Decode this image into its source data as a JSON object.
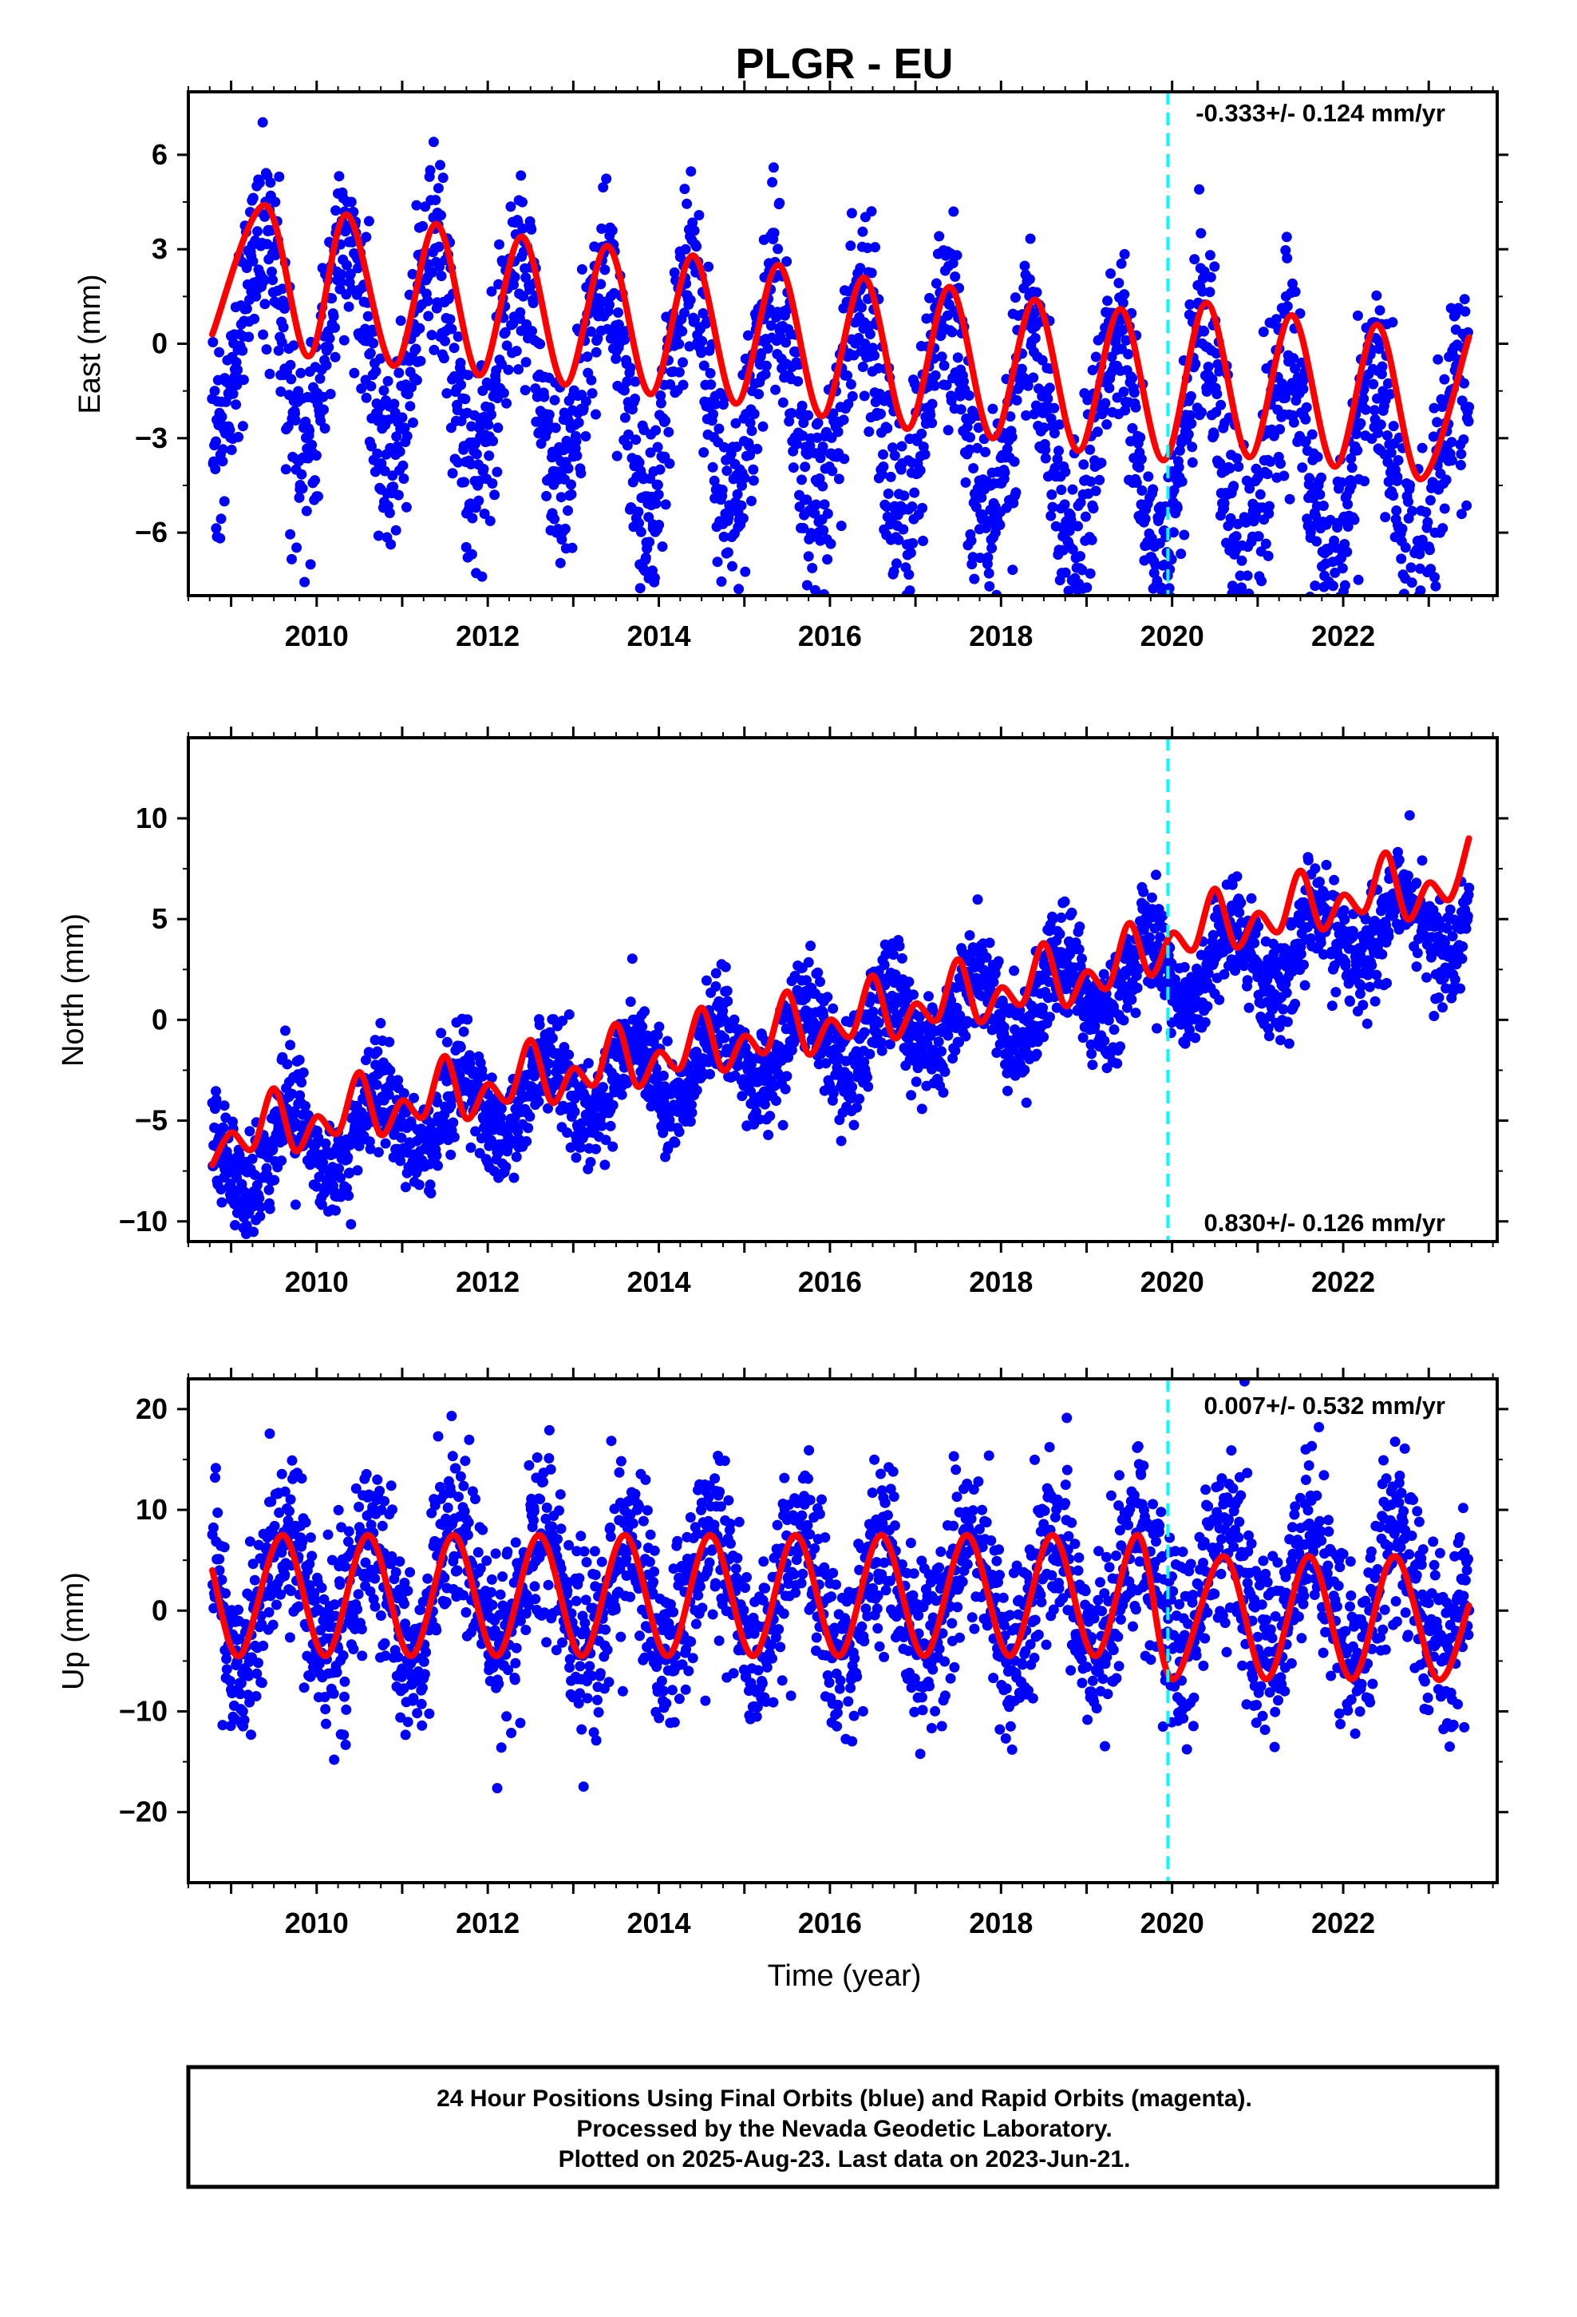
{
  "title": "PLGR - EU",
  "colors": {
    "final_orbit_points": "#0000ff",
    "model_curve": "#ff0000",
    "break_line": "#00ffff",
    "axes": "#000000"
  },
  "xlabel": "Time (year)",
  "footer": {
    "line1": "24 Hour Positions Using Final Orbits (blue) and Rapid Orbits (magenta).",
    "line2": "Processed by the Nevada Geodetic Laboratory.",
    "line3": "Plotted on 2025-Aug-23. Last data on 2023-Jun-21."
  },
  "chart_data": [
    {
      "type": "scatter",
      "component": "east",
      "ylabel": "East (mm)",
      "rate_text": "-0.333+/- 0.124 mm/yr",
      "rate_position": "top-right",
      "xlim": [
        2008.5,
        2023.8
      ],
      "ylim": [
        -8,
        8
      ],
      "x_ticks": [
        2010,
        2012,
        2014,
        2016,
        2018,
        2020,
        2022
      ],
      "y_ticks": [
        -6,
        -3,
        0,
        3,
        6
      ],
      "y_tick_labels": [
        "−6",
        "−3",
        "0",
        "3",
        "6"
      ],
      "break_year": 2019.95,
      "grid": false,
      "series": [
        {
          "kind": "points",
          "color": "#0000ff",
          "x_start": 2008.78,
          "x_end": 2023.47,
          "model": {
            "offset": 0.3,
            "trend": -0.333,
            "annual_amp": 3.5,
            "phase": 0.1,
            "scatter_sd": 1.6
          }
        },
        {
          "kind": "fit",
          "color": "#ff0000",
          "x": [
            2008.78,
            2009.4,
            2009.9,
            2010.35,
            2010.9,
            2011.4,
            2011.9,
            2012.4,
            2012.9,
            2013.4,
            2013.9,
            2014.4,
            2014.9,
            2015.4,
            2015.9,
            2016.4,
            2016.9,
            2017.4,
            2017.9,
            2018.4,
            2018.9,
            2019.4,
            2019.9,
            2020.4,
            2020.9,
            2021.4,
            2021.9,
            2022.4,
            2022.9,
            2023.47
          ],
          "y": [
            0.3,
            4.4,
            -0.4,
            4.1,
            -0.7,
            3.8,
            -1.0,
            3.4,
            -1.3,
            3.1,
            -1.6,
            2.8,
            -1.9,
            2.5,
            -2.3,
            2.1,
            -2.7,
            1.8,
            -3.0,
            1.4,
            -3.4,
            1.1,
            -3.7,
            1.3,
            -3.6,
            0.9,
            -3.9,
            0.6,
            -4.3,
            0.2
          ]
        }
      ]
    },
    {
      "type": "scatter",
      "component": "north",
      "ylabel": "North (mm)",
      "rate_text": "0.830+/- 0.126 mm/yr",
      "rate_position": "bottom-right",
      "xlim": [
        2008.5,
        2023.8
      ],
      "ylim": [
        -11,
        14
      ],
      "x_ticks": [
        2010,
        2012,
        2014,
        2016,
        2018,
        2020,
        2022
      ],
      "y_ticks": [
        -10,
        -5,
        0,
        5,
        10
      ],
      "y_tick_labels": [
        "−10",
        "−5",
        "0",
        "5",
        "10"
      ],
      "break_year": 2019.95,
      "grid": false,
      "series": [
        {
          "kind": "points",
          "color": "#0000ff",
          "x_start": 2008.78,
          "x_end": 2023.47,
          "model": {
            "offset": -7.0,
            "trend": 0.83,
            "annual_amp": 1.8,
            "phase": 0.45,
            "scatter_sd": 1.3
          }
        },
        {
          "kind": "fit",
          "color": "#ff0000",
          "x": [
            2008.78,
            2009.0,
            2009.25,
            2009.5,
            2009.75,
            2010.0,
            2010.25,
            2010.5,
            2010.75,
            2011.0,
            2011.25,
            2011.5,
            2011.75,
            2012.0,
            2012.25,
            2012.5,
            2012.75,
            2013.0,
            2013.25,
            2013.5,
            2013.75,
            2014.0,
            2014.25,
            2014.5,
            2014.75,
            2015.0,
            2015.25,
            2015.5,
            2015.75,
            2016.0,
            2016.25,
            2016.5,
            2016.75,
            2017.0,
            2017.25,
            2017.5,
            2017.75,
            2018.0,
            2018.25,
            2018.5,
            2018.75,
            2019.0,
            2019.25,
            2019.5,
            2019.75,
            2020.0,
            2020.25,
            2020.5,
            2020.75,
            2021.0,
            2021.25,
            2021.5,
            2021.75,
            2022.0,
            2022.25,
            2022.5,
            2022.75,
            2023.0,
            2023.25,
            2023.47
          ],
          "y": [
            -7.2,
            -5.6,
            -6.4,
            -3.4,
            -6.5,
            -4.8,
            -5.6,
            -2.6,
            -5.7,
            -4.0,
            -4.8,
            -1.8,
            -4.9,
            -3.2,
            -4.0,
            -1.0,
            -4.1,
            -2.4,
            -3.2,
            -0.2,
            -3.3,
            -1.6,
            -2.4,
            0.6,
            -2.5,
            -0.8,
            -1.6,
            1.4,
            -1.7,
            0.0,
            -0.8,
            2.2,
            -0.9,
            0.8,
            0.0,
            3.0,
            -0.1,
            1.6,
            0.8,
            3.8,
            0.7,
            2.4,
            1.6,
            4.8,
            2.2,
            4.3,
            3.5,
            6.5,
            3.6,
            5.3,
            4.4,
            7.4,
            4.5,
            6.2,
            5.4,
            8.3,
            5.0,
            6.8,
            6.0,
            9.0
          ]
        }
      ]
    },
    {
      "type": "scatter",
      "component": "up",
      "ylabel": "Up (mm)",
      "rate_text": "0.007+/- 0.532 mm/yr",
      "rate_position": "top-right",
      "xlim": [
        2008.5,
        2023.8
      ],
      "ylim": [
        -27,
        23
      ],
      "x_ticks": [
        2010,
        2012,
        2014,
        2016,
        2018,
        2020,
        2022
      ],
      "y_ticks": [
        -20,
        -10,
        0,
        10,
        20
      ],
      "y_tick_labels": [
        "−20",
        "−10",
        "0",
        "10",
        "20"
      ],
      "break_year": 2019.95,
      "grid": false,
      "series": [
        {
          "kind": "points",
          "color": "#0000ff",
          "x_start": 2008.78,
          "x_end": 2023.47,
          "model": {
            "offset": 1.5,
            "trend": 0.007,
            "annual_amp": 6.0,
            "phase": 0.38,
            "scatter_sd": 4.5
          }
        },
        {
          "kind": "fit",
          "color": "#ff0000",
          "x": [
            2008.78,
            2009.1,
            2009.6,
            2010.1,
            2010.6,
            2011.1,
            2011.6,
            2012.1,
            2012.6,
            2013.1,
            2013.6,
            2014.1,
            2014.6,
            2015.1,
            2015.6,
            2016.1,
            2016.6,
            2017.1,
            2017.6,
            2018.1,
            2018.6,
            2019.1,
            2019.6,
            2020.0,
            2020.6,
            2021.1,
            2021.6,
            2022.1,
            2022.6,
            2023.1,
            2023.47
          ],
          "y": [
            4.0,
            -4.5,
            7.5,
            -4.5,
            7.5,
            -4.5,
            7.5,
            -4.5,
            7.5,
            -4.5,
            7.5,
            -4.5,
            7.5,
            -4.5,
            7.5,
            -4.5,
            7.5,
            -4.5,
            7.5,
            -4.5,
            7.5,
            -4.5,
            7.5,
            -6.8,
            5.4,
            -6.8,
            5.4,
            -6.8,
            5.4,
            -6.8,
            0.5
          ]
        }
      ]
    }
  ]
}
